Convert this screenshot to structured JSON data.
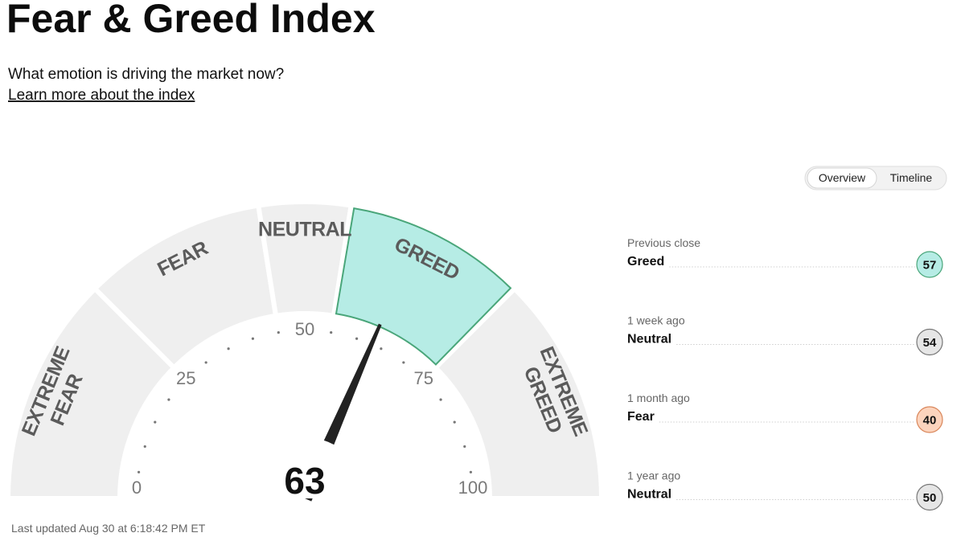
{
  "header": {
    "title": "Fear & Greed Index",
    "subtitle": "What emotion is driving the market now?",
    "link": "Learn more about the index"
  },
  "tabs": {
    "items": [
      "Overview",
      "Timeline"
    ],
    "active": 0
  },
  "gauge": {
    "value": 63,
    "range": [
      0,
      100
    ],
    "ticks": [
      0,
      25,
      50,
      75,
      100
    ],
    "minor_ticks": [
      5,
      10,
      15,
      20,
      30,
      35,
      40,
      45,
      55,
      60,
      65,
      70,
      80,
      85,
      90,
      95
    ],
    "segments": [
      {
        "lines": [
          "EXTREME",
          "FEAR"
        ],
        "from": 0,
        "to": 25
      },
      {
        "lines": [
          "FEAR"
        ],
        "from": 25,
        "to": 45
      },
      {
        "lines": [
          "NEUTRAL"
        ],
        "from": 45,
        "to": 55
      },
      {
        "lines": [
          "GREED"
        ],
        "from": 55,
        "to": 75
      },
      {
        "lines": [
          "EXTREME",
          "GREED"
        ],
        "from": 75,
        "to": 100
      }
    ],
    "color": "#efefef",
    "active_color": "#b6ece5",
    "active_stroke": "#4aa67a"
  },
  "history": [
    {
      "period": "Previous close",
      "label": "Greed",
      "value": 57,
      "color": "#b6ece5",
      "border": "#4aa67a"
    },
    {
      "period": "1 week ago",
      "label": "Neutral",
      "value": 54,
      "color": "#e6e6e6",
      "border": "#777777"
    },
    {
      "period": "1 month ago",
      "label": "Fear",
      "value": 40,
      "color": "#fcd4bd",
      "border": "#d9865a"
    },
    {
      "period": "1 year ago",
      "label": "Neutral",
      "value": 50,
      "color": "#e6e6e6",
      "border": "#777777"
    }
  ],
  "footer": "Last updated Aug 30 at 6:18:42 PM ET"
}
